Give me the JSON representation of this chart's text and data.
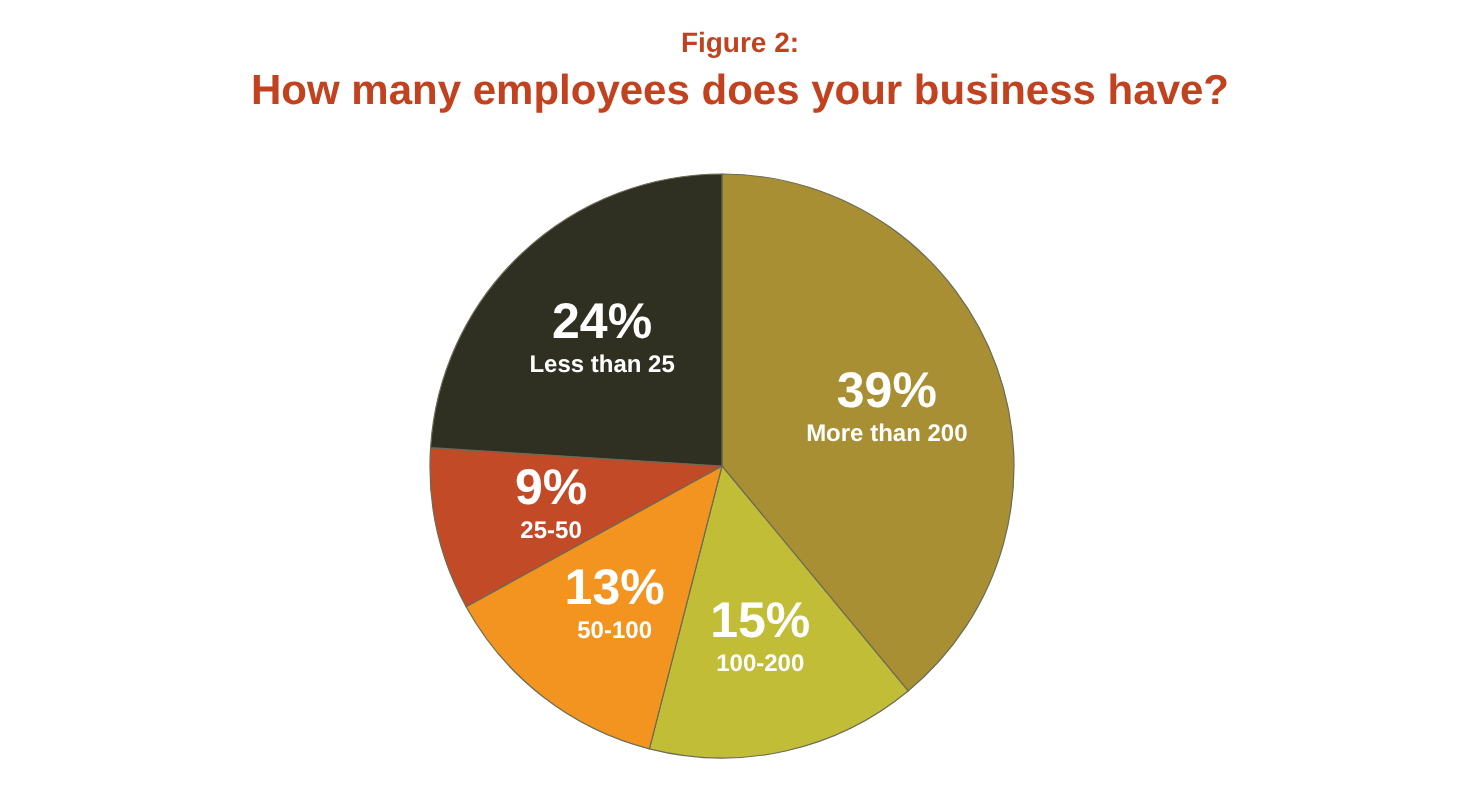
{
  "chart_data": {
    "type": "pie",
    "title": "Figure 2:",
    "subtitle": "How many employees does your business have?",
    "categories": [
      "More than 200",
      "100-200",
      "50-100",
      "25-50",
      "Less than 25"
    ],
    "values": [
      39,
      15,
      13,
      9,
      24
    ],
    "value_labels": [
      "39%",
      "15%",
      "13%",
      "9%",
      "24%"
    ],
    "colors": [
      "#a98f33",
      "#c2bd36",
      "#f39421",
      "#c24a27",
      "#2f2f22"
    ]
  }
}
